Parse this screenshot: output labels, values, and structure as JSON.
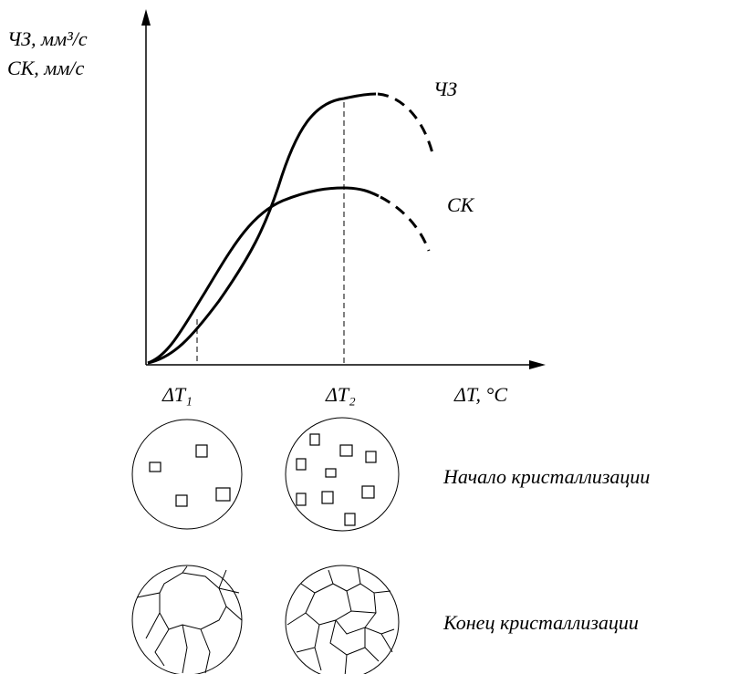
{
  "y_axis": {
    "line1": "ЧЗ, мм³/с",
    "line2": "СК, мм/с"
  },
  "x_axis": {
    "title": "ΔT, °C",
    "ticks": [
      "ΔT₁",
      "ΔT₂"
    ]
  },
  "curves": [
    {
      "label": "ЧЗ"
    },
    {
      "label": "СК"
    }
  ],
  "rows": [
    {
      "label": "Начало кристаллизации"
    },
    {
      "label": "Конец кристаллизации"
    }
  ]
}
